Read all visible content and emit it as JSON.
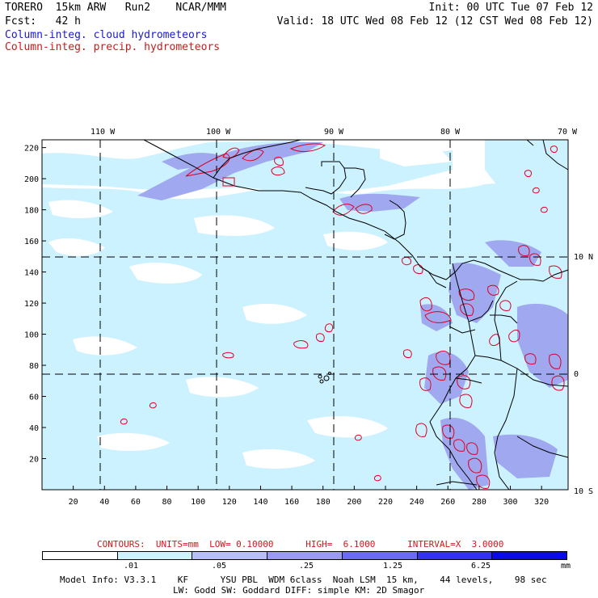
{
  "header": {
    "model": "TORERO",
    "resolution": "15km ARW",
    "run": "Run2",
    "org": "NCAR/MMM",
    "fcst_label": "Fcst:",
    "fcst_value": "42 h",
    "init": "Init: 00 UTC Tue 07 Feb 12",
    "valid": "Valid: 18 UTC Wed 08 Feb 12 (12 CST Wed 08 Feb 12)",
    "field1": "Column-integ. cloud hydrometeors",
    "field2": "Column-integ. precip. hydrometeors"
  },
  "map": {
    "lon_labels": [
      "110 W",
      "100 W",
      "90 W",
      "80 W",
      "70 W"
    ],
    "lat_labels": [
      "10 N",
      "0",
      "10 S"
    ],
    "y_ticks": [
      "220",
      "200",
      "180",
      "160",
      "140",
      "120",
      "100",
      "80",
      "60",
      "40",
      "20"
    ],
    "x_ticks": [
      "20",
      "40",
      "60",
      "80",
      "100",
      "120",
      "140",
      "160",
      "180",
      "200",
      "220",
      "240",
      "260",
      "280",
      "300",
      "320"
    ],
    "colors": {
      "shade1": "#ccf2ff",
      "shade2": "#a0a8f0",
      "shade3": "#7f7ff0",
      "shade4": "#5a5af0",
      "shade5": "#2222e8",
      "contour": "#dd0022"
    }
  },
  "contours_line": {
    "text": "CONTOURS:  UNITS=mm  LOW= 0.10000      HIGH=  6.1000      INTERVAL=X  3.0000"
  },
  "colorbar": {
    "labels": [
      ".01",
      ".05",
      ".25",
      "1.25",
      "6.25"
    ],
    "units": "mm",
    "colors": [
      "#ffffff",
      "#ccf2ff",
      "#b8bff5",
      "#9a9af5",
      "#6a6af2",
      "#3333ee",
      "#0a0ae6"
    ]
  },
  "footer": {
    "line1": "Model Info: V3.3.1    KF      YSU PBL  WDM 6class  Noah LSM  15 km,    44 levels,    98 sec",
    "line2": "LW: Godd SW: Goddard DIFF: simple KM: 2D Smagor"
  }
}
